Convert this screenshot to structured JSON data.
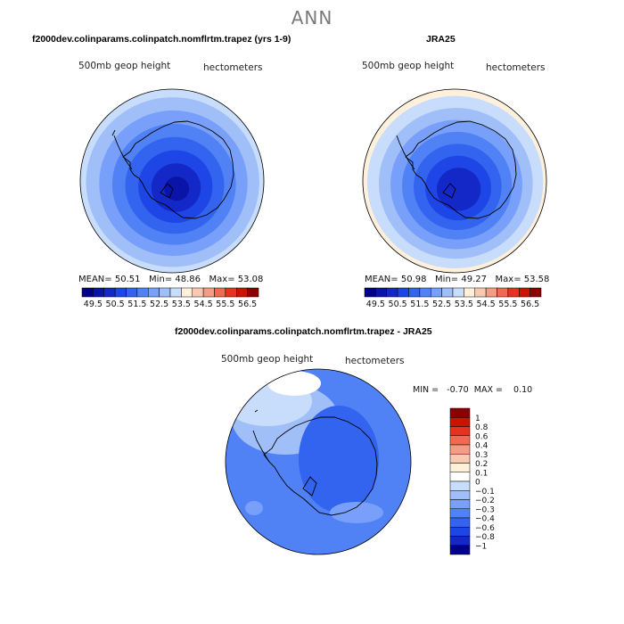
{
  "page": {
    "title": "ANN"
  },
  "panels": [
    {
      "title": "f2000dev.colinparams.colinpatch.nomflrtm.trapez (yrs 1-9)",
      "left_label": "500mb geop height",
      "right_label": "hectometers",
      "stats": {
        "mean_label": "MEAN=",
        "mean": "50.51",
        "min_label": "Min=",
        "min": "48.86",
        "max_label": "Max=",
        "max": "53.08"
      }
    },
    {
      "title": "JRA25",
      "left_label": "500mb geop height",
      "right_label": "hectometers",
      "stats": {
        "mean_label": "MEAN=",
        "mean": "50.98",
        "min_label": "Min=",
        "min": "49.27",
        "max_label": "Max=",
        "max": "53.58"
      }
    },
    {
      "title": "f2000dev.colinparams.colinpatch.nomflrtm.trapez - JRA25",
      "left_label": "500mb geop height",
      "right_label": "hectometers",
      "minmax": "MIN =   -0.70  MAX =    0.10"
    }
  ],
  "chart_data": [
    {
      "type": "heatmap",
      "projection": "south-polar-stereographic",
      "colorbar_orientation": "horizontal",
      "colorbar_labels": [
        "49.5",
        "50.5",
        "51.5",
        "52.5",
        "53.5",
        "54.5",
        "55.5",
        "56.5"
      ],
      "levels": [
        49,
        49.5,
        50,
        50.5,
        51,
        51.5,
        52,
        52.5,
        53,
        53.5,
        54,
        54.5,
        55,
        55.5,
        56,
        56.5
      ],
      "colors": [
        "#00008b",
        "#0a14a8",
        "#1428c8",
        "#1e46e6",
        "#3264f0",
        "#5082f5",
        "#78a0fa",
        "#a0bef8",
        "#c8dcfc",
        "#fff0dc",
        "#f8c8b0",
        "#f49c84",
        "#ef6a50",
        "#e6321e",
        "#c81400",
        "#8b0000"
      ],
      "field_levels_center_to_edge": [
        49.25,
        49.75,
        50.25,
        50.75,
        51.25,
        51.75,
        52.25,
        52.75
      ]
    },
    {
      "type": "heatmap",
      "projection": "south-polar-stereographic",
      "colorbar_orientation": "horizontal",
      "colorbar_labels": [
        "49.5",
        "50.5",
        "51.5",
        "52.5",
        "53.5",
        "54.5",
        "55.5",
        "56.5"
      ],
      "levels": [
        49,
        49.5,
        50,
        50.5,
        51,
        51.5,
        52,
        52.5,
        53,
        53.5,
        54,
        54.5,
        55,
        55.5,
        56,
        56.5
      ],
      "colors": [
        "#00008b",
        "#0a14a8",
        "#1428c8",
        "#1e46e6",
        "#3264f0",
        "#5082f5",
        "#78a0fa",
        "#a0bef8",
        "#c8dcfc",
        "#fff0dc",
        "#f8c8b0",
        "#f49c84",
        "#ef6a50",
        "#e6321e",
        "#c81400",
        "#8b0000"
      ],
      "field_levels_center_to_edge": [
        49.5,
        49.75,
        50.25,
        50.75,
        51.25,
        51.75,
        52.25,
        52.75,
        53.25
      ]
    },
    {
      "type": "heatmap",
      "projection": "south-polar-stereographic",
      "colorbar_orientation": "vertical",
      "colorbar_labels": [
        "1",
        "0.8",
        "0.6",
        "0.4",
        "0.3",
        "0.2",
        "0.1",
        "0",
        "−0.1",
        "−0.2",
        "−0.3",
        "−0.4",
        "−0.6",
        "−0.8",
        "−1"
      ],
      "levels": [
        1,
        0.8,
        0.6,
        0.4,
        0.3,
        0.2,
        0.1,
        0,
        -0.1,
        -0.2,
        -0.3,
        -0.4,
        -0.6,
        -0.8,
        -1
      ],
      "colors": [
        "#8b0000",
        "#c81400",
        "#e6321e",
        "#ef6a50",
        "#f49c84",
        "#f8c8b0",
        "#fff0dc",
        "#ffffff",
        "#c8dcfc",
        "#a0bef8",
        "#78a0fa",
        "#5082f5",
        "#3264f0",
        "#1e46e6",
        "#1428c8",
        "#00008b"
      ],
      "min": -0.7,
      "max": 0.1
    }
  ]
}
